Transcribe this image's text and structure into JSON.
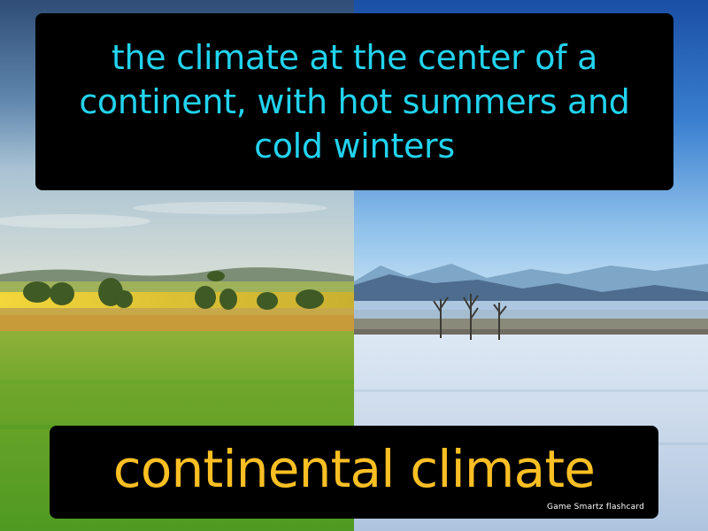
{
  "definition": "the climate at the center of a continent, with hot summers and cold winters",
  "term": "continental climate",
  "brand": "Game Smartz flashcard",
  "colors": {
    "definition_text": "#22d3ee",
    "term_text": "#fbbf24",
    "box_background": "#000000"
  },
  "images": {
    "left": "summer-meadow-landscape",
    "right": "snowy-winter-landscape"
  }
}
